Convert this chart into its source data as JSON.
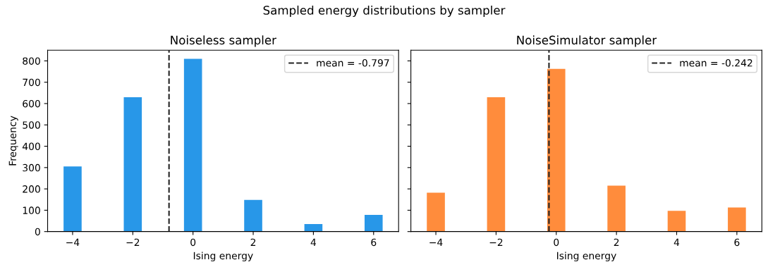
{
  "chart_data": [
    {
      "type": "histogram",
      "title": "Noiseless sampler",
      "xlabel": "Ising energy",
      "ylabel": "Frequency",
      "annotations": [
        "Sampled energy distributions by sampler"
      ],
      "bins": [
        -4.3,
        -3.7,
        -2.3,
        -1.7,
        -0.3,
        0.3,
        1.7,
        2.3,
        3.7,
        4.3,
        5.7,
        6.3
      ],
      "values": [
        305,
        0,
        630,
        0,
        810,
        0,
        148,
        0,
        35,
        0,
        78
      ],
      "color": "#2897e8",
      "xlim": [
        -4.83,
        6.83
      ],
      "xticks": [
        -4,
        -2,
        0,
        2,
        4,
        6
      ],
      "ylim": [
        0,
        850
      ],
      "yticks": [
        0,
        100,
        200,
        300,
        400,
        500,
        600,
        700,
        800
      ],
      "ref_lines": [
        {
          "axis": "x",
          "value": -0.797,
          "label": "mean = -0.797",
          "color": "#222222",
          "line_style": "dashed"
        }
      ],
      "legend": "top right",
      "grid": false
    },
    {
      "type": "histogram",
      "title": "NoiseSimulator sampler",
      "xlabel": "Ising energy",
      "bins": [
        -4.3,
        -3.7,
        -2.3,
        -1.7,
        -0.3,
        0.3,
        1.7,
        2.3,
        3.7,
        4.3,
        5.7,
        6.3
      ],
      "values": [
        182,
        0,
        630,
        0,
        763,
        0,
        215,
        0,
        97,
        0,
        113
      ],
      "color": "#ff8c3c",
      "xlim": [
        -4.83,
        6.83
      ],
      "xticks": [
        -4,
        -2,
        0,
        2,
        4,
        6
      ],
      "ylim": [
        0,
        850
      ],
      "yticks": [
        0,
        100,
        200,
        300,
        400,
        500,
        600,
        700,
        800
      ],
      "ref_lines": [
        {
          "axis": "x",
          "value": -0.242,
          "label": "mean = -0.242",
          "color": "#222222",
          "line_style": "dashed"
        }
      ],
      "legend": "top right",
      "grid": false,
      "tick_labels": "x"
    }
  ]
}
